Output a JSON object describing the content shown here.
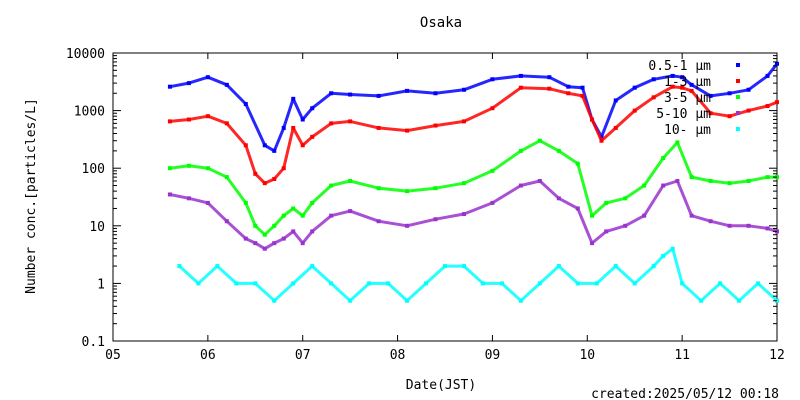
{
  "chart_data": {
    "type": "scatter",
    "title": "Osaka",
    "xlabel": "Date(JST)",
    "ylabel": "Number conc.[particles/L]",
    "y_scale": "log",
    "ylim": [
      0.1,
      10000
    ],
    "xlim": [
      "05",
      "12"
    ],
    "x_ticks": [
      "05",
      "06",
      "07",
      "08",
      "09",
      "10",
      "11",
      "12"
    ],
    "y_ticks": [
      "0.1",
      "1",
      "10",
      "100",
      "1000",
      "10000"
    ],
    "legend_position": "top-right",
    "series": [
      {
        "name": "0.5-1 μm",
        "color": "#0000ff",
        "x": [
          5.6,
          5.8,
          6.0,
          6.2,
          6.4,
          6.6,
          6.7,
          6.8,
          6.9,
          7.0,
          7.1,
          7.3,
          7.5,
          7.8,
          8.1,
          8.4,
          8.7,
          9.0,
          9.3,
          9.6,
          9.8,
          9.95,
          10.05,
          10.15,
          10.3,
          10.5,
          10.7,
          10.9,
          11.0,
          11.1,
          11.3,
          11.5,
          11.7,
          11.9,
          12.0
        ],
        "values": [
          2600,
          3000,
          3800,
          2800,
          1300,
          250,
          200,
          500,
          1600,
          700,
          1100,
          2000,
          1900,
          1800,
          2200,
          2000,
          2300,
          3500,
          4000,
          3800,
          2600,
          2500,
          700,
          350,
          1500,
          2500,
          3500,
          4000,
          3800,
          2800,
          1800,
          2000,
          2300,
          4000,
          6500
        ]
      },
      {
        "name": "1-3 μm",
        "color": "#ff0000",
        "x": [
          5.6,
          5.8,
          6.0,
          6.2,
          6.4,
          6.5,
          6.6,
          6.7,
          6.8,
          6.9,
          7.0,
          7.1,
          7.3,
          7.5,
          7.8,
          8.1,
          8.4,
          8.7,
          9.0,
          9.3,
          9.6,
          9.8,
          9.95,
          10.05,
          10.15,
          10.3,
          10.5,
          10.7,
          10.9,
          11.0,
          11.1,
          11.3,
          11.5,
          11.7,
          11.9,
          12.0
        ],
        "values": [
          650,
          700,
          800,
          600,
          250,
          80,
          55,
          65,
          100,
          500,
          250,
          350,
          600,
          650,
          500,
          450,
          550,
          650,
          1100,
          2500,
          2400,
          2000,
          1800,
          700,
          300,
          500,
          1000,
          1700,
          2600,
          2500,
          2200,
          900,
          800,
          1000,
          1200,
          1400
        ]
      },
      {
        "name": "3-5 μm",
        "color": "#00ff00",
        "x": [
          5.6,
          5.8,
          6.0,
          6.2,
          6.4,
          6.5,
          6.6,
          6.7,
          6.8,
          6.9,
          7.0,
          7.1,
          7.3,
          7.5,
          7.8,
          8.1,
          8.4,
          8.7,
          9.0,
          9.3,
          9.5,
          9.7,
          9.9,
          10.05,
          10.2,
          10.4,
          10.6,
          10.8,
          10.95,
          11.1,
          11.3,
          11.5,
          11.7,
          11.9,
          12.0
        ],
        "values": [
          100,
          110,
          100,
          70,
          25,
          10,
          7,
          10,
          15,
          20,
          15,
          25,
          50,
          60,
          45,
          40,
          45,
          55,
          90,
          200,
          300,
          200,
          120,
          15,
          25,
          30,
          50,
          150,
          280,
          70,
          60,
          55,
          60,
          70,
          70
        ]
      },
      {
        "name": "5-10 μm",
        "color": "#9933cc",
        "x": [
          5.6,
          5.8,
          6.0,
          6.2,
          6.4,
          6.5,
          6.6,
          6.7,
          6.8,
          6.9,
          7.0,
          7.1,
          7.3,
          7.5,
          7.8,
          8.1,
          8.4,
          8.7,
          9.0,
          9.3,
          9.5,
          9.7,
          9.9,
          10.05,
          10.2,
          10.4,
          10.6,
          10.8,
          10.95,
          11.1,
          11.3,
          11.5,
          11.7,
          11.9,
          12.0
        ],
        "values": [
          35,
          30,
          25,
          12,
          6,
          5,
          4,
          5,
          6,
          8,
          5,
          8,
          15,
          18,
          12,
          10,
          13,
          16,
          25,
          50,
          60,
          30,
          20,
          5,
          8,
          10,
          15,
          50,
          60,
          15,
          12,
          10,
          10,
          9,
          8
        ]
      },
      {
        "name": "10- μm",
        "color": "#00ffff",
        "x": [
          5.7,
          5.9,
          6.1,
          6.3,
          6.5,
          6.7,
          6.9,
          7.1,
          7.3,
          7.5,
          7.7,
          7.9,
          8.1,
          8.3,
          8.5,
          8.7,
          8.9,
          9.1,
          9.3,
          9.5,
          9.7,
          9.9,
          10.1,
          10.3,
          10.5,
          10.7,
          10.8,
          10.9,
          11.0,
          11.2,
          11.4,
          11.6,
          11.8,
          12.0
        ],
        "values": [
          2,
          1,
          2,
          1,
          1,
          0.5,
          1,
          2,
          1,
          0.5,
          1,
          1,
          0.5,
          1,
          2,
          2,
          1,
          1,
          0.5,
          1,
          2,
          1,
          1,
          2,
          1,
          2,
          3,
          4,
          1,
          0.5,
          1,
          0.5,
          1,
          0.5
        ]
      }
    ]
  },
  "created_label": "created:2025/05/12 00:18"
}
